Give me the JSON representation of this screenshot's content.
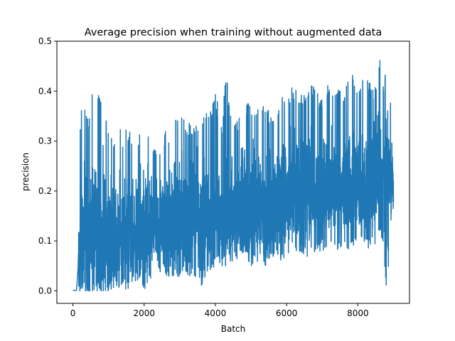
{
  "chart_data": {
    "type": "line",
    "title": "Average precision when training without augmented data",
    "xlabel": "Batch",
    "ylabel": "precision",
    "xlim": [
      -450,
      9450
    ],
    "ylim": [
      -0.025,
      0.5
    ],
    "xticks": [
      0,
      2000,
      4000,
      6000,
      8000
    ],
    "xtick_labels": [
      "0",
      "2000",
      "4000",
      "6000",
      "8000"
    ],
    "yticks": [
      0.0,
      0.1,
      0.2,
      0.3,
      0.4,
      0.5
    ],
    "ytick_labels": [
      "0.0",
      "0.1",
      "0.2",
      "0.3",
      "0.4",
      "0.5"
    ],
    "grid": false,
    "legend": "none",
    "series": [
      {
        "color": "#1f77b4",
        "x_start": 0,
        "x_end": 9000,
        "note_samples_batch_step": 50,
        "x": [
          0,
          50,
          100,
          150,
          200,
          250,
          300,
          350,
          400,
          450,
          500,
          550,
          600,
          650,
          700,
          750,
          800,
          850,
          900,
          950,
          1000,
          1100,
          1200,
          1300,
          1400,
          1500,
          1600,
          1700,
          1800,
          1900,
          2000,
          2200,
          2400,
          2600,
          2800,
          3000,
          3200,
          3400,
          3600,
          3800,
          4000,
          4200,
          4300,
          4400,
          4600,
          4800,
          5000,
          5200,
          5400,
          5600,
          5800,
          6000,
          6200,
          6400,
          6600,
          6800,
          7000,
          7200,
          7400,
          7600,
          7800,
          8000,
          8200,
          8400,
          8500,
          8600,
          8700,
          8800,
          8850,
          8900,
          9000
        ],
        "y_max": [
          0.002,
          0.002,
          0.002,
          0.11,
          0.333,
          0.38,
          0.36,
          0.39,
          0.37,
          0.35,
          0.36,
          0.415,
          0.33,
          0.39,
          0.4,
          0.395,
          0.37,
          0.31,
          0.35,
          0.36,
          0.34,
          0.32,
          0.3,
          0.33,
          0.31,
          0.34,
          0.32,
          0.32,
          0.3,
          0.32,
          0.38,
          0.3,
          0.28,
          0.32,
          0.33,
          0.375,
          0.34,
          0.33,
          0.35,
          0.36,
          0.395,
          0.34,
          0.453,
          0.36,
          0.34,
          0.38,
          0.38,
          0.38,
          0.37,
          0.36,
          0.38,
          0.4,
          0.41,
          0.39,
          0.42,
          0.41,
          0.39,
          0.42,
          0.4,
          0.41,
          0.44,
          0.42,
          0.43,
          0.41,
          0.42,
          0.476,
          0.41,
          0.452,
          0.44,
          0.39,
          0.38
        ],
        "y_min": [
          0.001,
          0.001,
          0.0,
          0.0,
          0.0,
          0.0,
          0.0,
          0.0,
          0.0,
          0.0,
          0.0,
          0.0,
          0.0,
          0.0,
          0.0,
          0.0,
          0.0,
          0.0,
          0.0,
          0.0,
          0.0,
          0.005,
          0.01,
          0.0,
          0.02,
          0.0,
          0.01,
          0.02,
          0.02,
          0.03,
          0.0,
          0.02,
          0.03,
          0.03,
          0.02,
          0.03,
          0.03,
          0.03,
          0.01,
          0.04,
          0.05,
          0.05,
          0.05,
          0.06,
          0.06,
          0.08,
          0.05,
          0.06,
          0.05,
          0.07,
          0.06,
          0.07,
          0.07,
          0.08,
          0.06,
          0.08,
          0.08,
          0.09,
          0.08,
          0.09,
          0.08,
          0.09,
          0.1,
          0.07,
          0.1,
          0.12,
          0.1,
          0.0,
          0.02,
          0.1,
          0.13
        ],
        "y_mean": [
          0.001,
          0.001,
          0.001,
          0.05,
          0.1,
          0.12,
          0.11,
          0.12,
          0.11,
          0.1,
          0.11,
          0.12,
          0.1,
          0.11,
          0.11,
          0.11,
          0.1,
          0.1,
          0.1,
          0.1,
          0.1,
          0.11,
          0.11,
          0.11,
          0.12,
          0.12,
          0.12,
          0.12,
          0.12,
          0.13,
          0.13,
          0.13,
          0.13,
          0.14,
          0.14,
          0.14,
          0.14,
          0.15,
          0.15,
          0.15,
          0.15,
          0.16,
          0.16,
          0.16,
          0.16,
          0.17,
          0.17,
          0.17,
          0.17,
          0.18,
          0.18,
          0.18,
          0.18,
          0.19,
          0.19,
          0.19,
          0.19,
          0.2,
          0.2,
          0.2,
          0.21,
          0.21,
          0.21,
          0.21,
          0.22,
          0.22,
          0.22,
          0.22,
          0.22,
          0.22,
          0.23
        ]
      }
    ]
  }
}
